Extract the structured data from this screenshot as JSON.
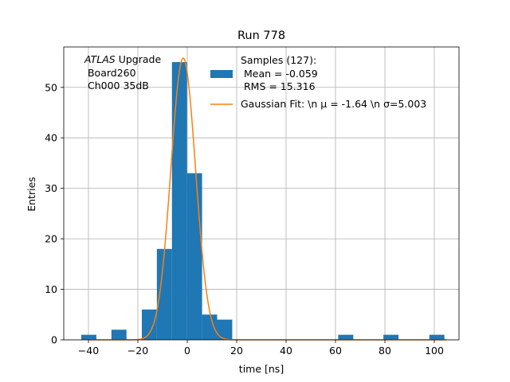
{
  "chart_data": {
    "type": "bar",
    "title": "Run 778",
    "xlabel": "time [ns]",
    "ylabel": "Entries",
    "xlim": [
      -50,
      110
    ],
    "ylim": [
      0,
      58
    ],
    "x_ticks": [
      -40,
      -20,
      0,
      20,
      40,
      60,
      80,
      100
    ],
    "y_ticks": [
      0,
      10,
      20,
      30,
      40,
      50
    ],
    "grid": true,
    "legend_placement": "top-center",
    "annotation": {
      "line1_italic": "ATLAS",
      "line1_rest": " Upgrade",
      "line2": " Board260",
      "line3": " Ch000 35dB"
    },
    "series": [
      {
        "type": "histogram",
        "color": "#1f77b4",
        "legend_lines": [
          "Samples (127):",
          " Mean = -0.059",
          " RMS = 15.316"
        ],
        "bins": [
          {
            "x0": -42.9,
            "x1": -36.8,
            "count": 1
          },
          {
            "x0": -30.7,
            "x1": -24.6,
            "count": 2
          },
          {
            "x0": -18.4,
            "x1": -12.3,
            "count": 6
          },
          {
            "x0": -12.3,
            "x1": -6.2,
            "count": 18
          },
          {
            "x0": -6.2,
            "x1": -0.1,
            "count": 55
          },
          {
            "x0": -0.1,
            "x1": 6.0,
            "count": 33
          },
          {
            "x0": 6.0,
            "x1": 12.1,
            "count": 5
          },
          {
            "x0": 12.1,
            "x1": 18.2,
            "count": 4
          },
          {
            "x0": 61.1,
            "x1": 67.2,
            "count": 1
          },
          {
            "x0": 79.4,
            "x1": 85.5,
            "count": 1
          },
          {
            "x0": 98.0,
            "x1": 104.1,
            "count": 1
          }
        ]
      },
      {
        "type": "line",
        "color": "#ff7f0e",
        "legend_label": "Gaussian Fit: \\n μ = -1.64 \\n σ=5.003",
        "gaussian": {
          "mu": -1.64,
          "sigma": 5.003,
          "amplitude": 55.8
        },
        "x_range": [
          -40,
          105
        ]
      }
    ]
  }
}
